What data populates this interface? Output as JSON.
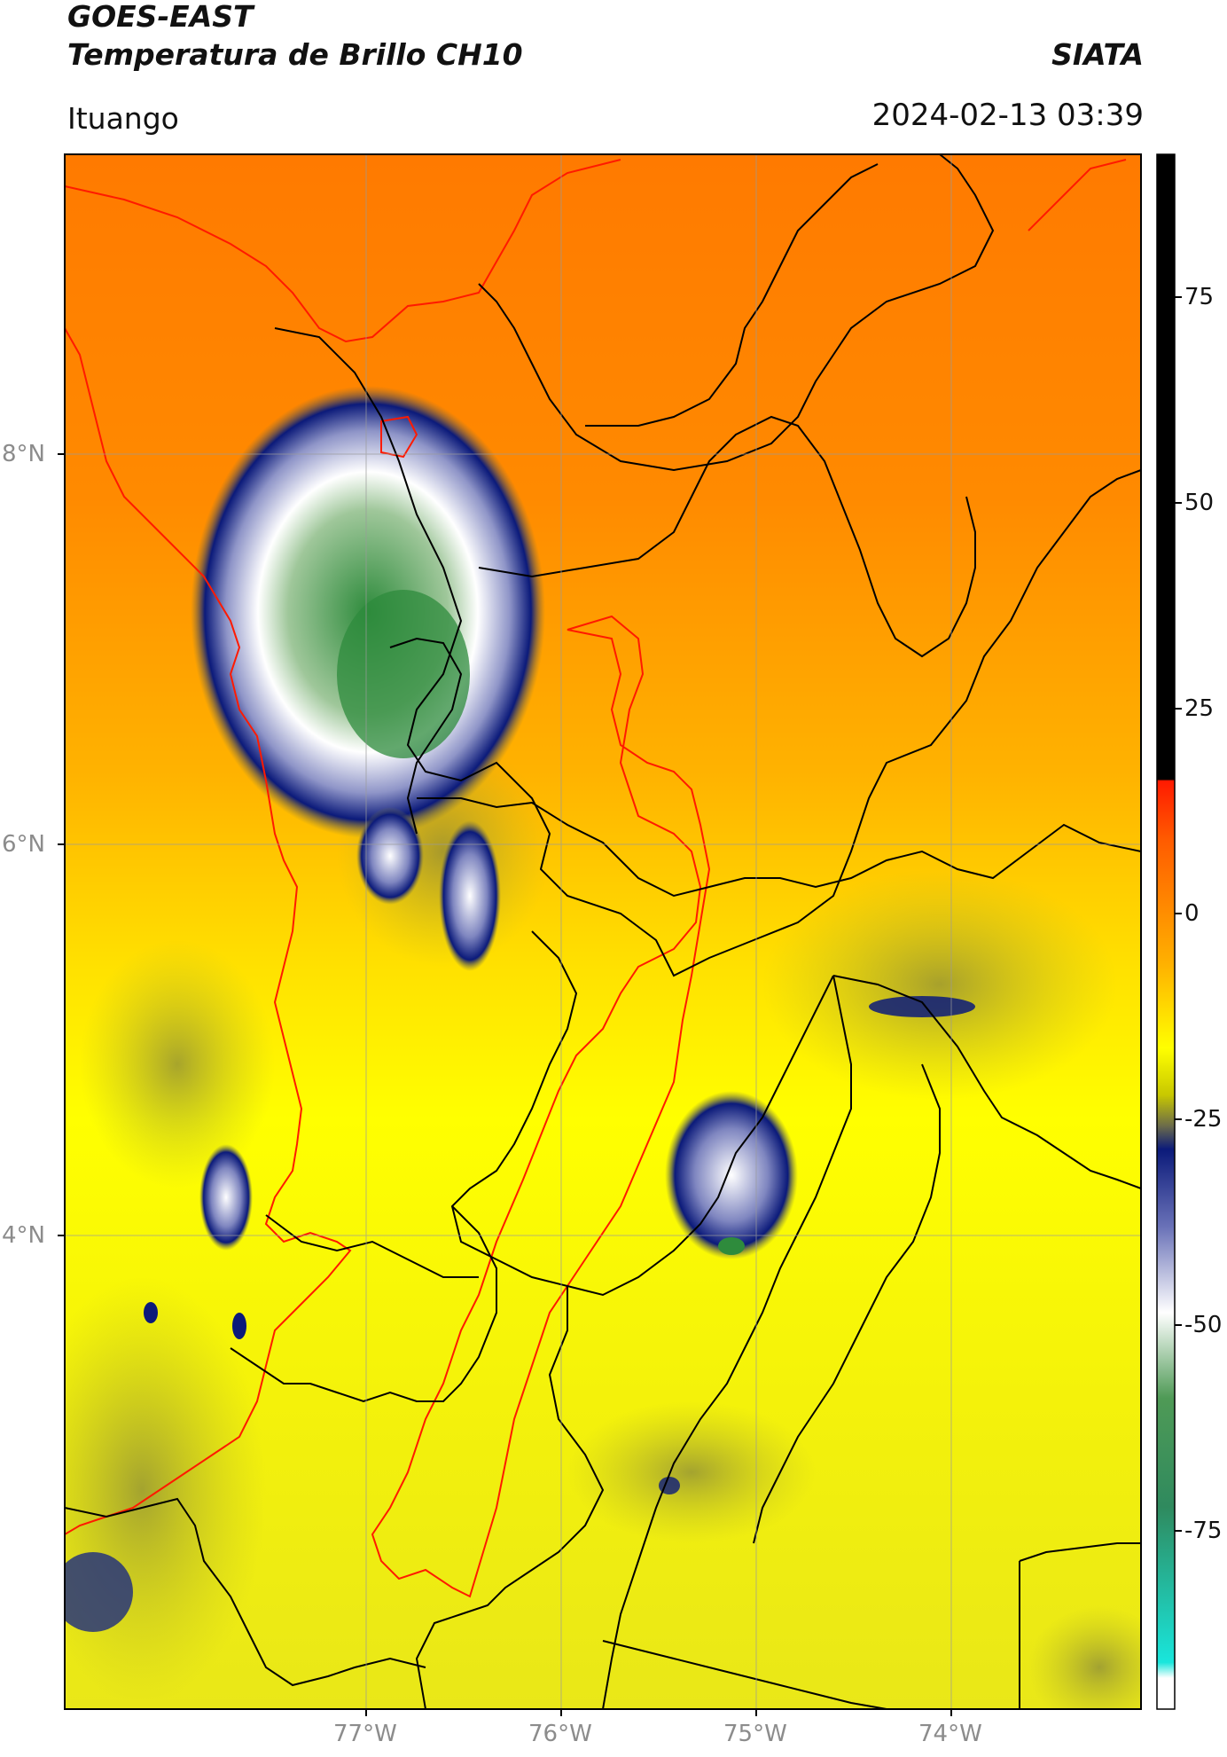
{
  "header": {
    "satellite": "GOES-EAST",
    "product": "Temperatura de Brillo CH10",
    "organization": "SIATA",
    "region": "Ituango",
    "datetime": "2024-02-13 03:39"
  },
  "map": {
    "lat_labels": [
      "8°N",
      "6°N",
      "4°N"
    ],
    "lon_labels": [
      "77°W",
      "76°W",
      "75°W",
      "74°W"
    ],
    "colorbar": {
      "tick_labels": [
        "75",
        "50",
        "25",
        "0",
        "-25",
        "-50",
        "-75"
      ],
      "colors": {
        "warm_black": "#000000",
        "red": "#ff1a00",
        "orange": "#ff7a00",
        "yellow": "#ffff00",
        "olive": "#7f7f2a",
        "navy": "#0b1a7a",
        "white": "#ffffff",
        "green": "#2e8b3c",
        "cyan": "#19e6dc"
      }
    },
    "boundary_colors": {
      "departments": "#000000",
      "rivers_basin": "#ff1a00"
    }
  }
}
